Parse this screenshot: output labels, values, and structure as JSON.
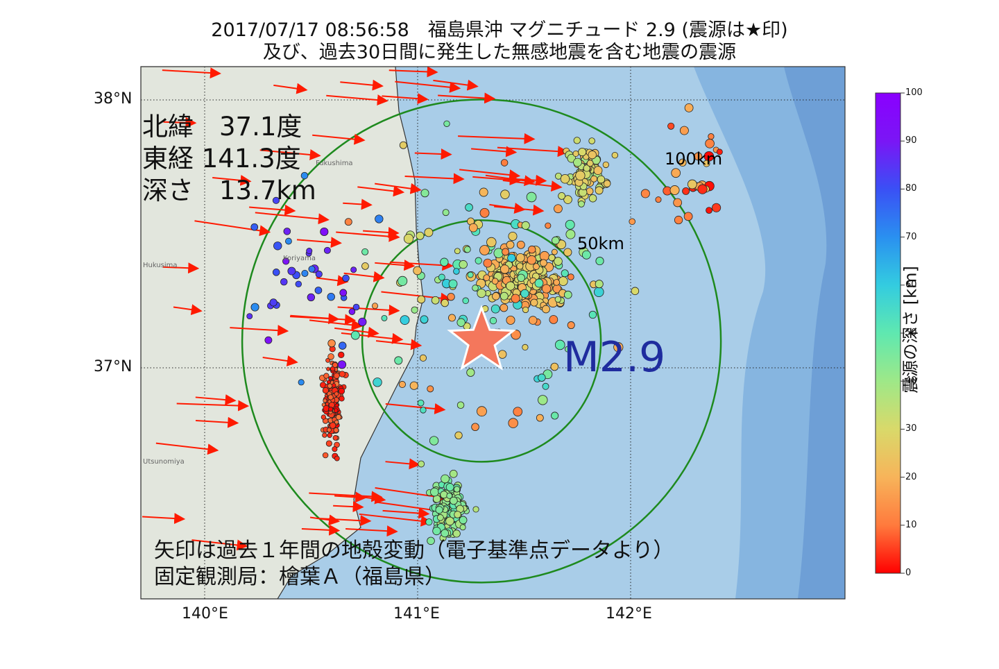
{
  "title": {
    "line1": "2017/07/17 08:56:58　福島県沖 マグニチュード 2.9 (震源は★印)",
    "line2": "及び、過去30日間に発生した無感地震を含む地震の震源"
  },
  "axes": {
    "lat_labels": [
      "38°N",
      "37°N"
    ],
    "lon_labels": [
      "140°E",
      "141°E",
      "142°E"
    ]
  },
  "epicenter": {
    "lat_line": "北緯　37.1度",
    "lon_line": "東経 141.3度",
    "depth_line": "深さ　13.7km",
    "magnitude_label": "M2.9",
    "lat": 37.1,
    "lon": 141.3,
    "depth_km": 13.7,
    "marker_color": "#f4775c"
  },
  "rings": [
    "50km",
    "100km"
  ],
  "place_names": [
    "Fukushima",
    "Koriyama",
    "Hukusima",
    "Utsunomiya"
  ],
  "footnote": {
    "line1": "矢印は過去１年間の地殻変動（電子基準点データより）",
    "line2": "固定観測局：檜葉Ａ（福島県）"
  },
  "colorbar": {
    "title": "震源の深さ [km]",
    "ticks": [
      "100",
      "90",
      "80",
      "70",
      "60",
      "50",
      "40",
      "30",
      "20",
      "10",
      "0"
    ],
    "colors": [
      "#ff0000",
      "#ff7a3d",
      "#f7b45a",
      "#d9d96a",
      "#9ee888",
      "#5fe8b0",
      "#33cce0",
      "#2a90f0",
      "#3a50f5",
      "#7a16f5",
      "#8a00ff"
    ]
  },
  "colors": {
    "sea": "#a9cde8",
    "deep_sea": "#7eaede",
    "land": "#e3e6df",
    "ring": "#1e8a1e",
    "arrow": "#ff1a00",
    "mag_text": "#1f2c9e"
  }
}
